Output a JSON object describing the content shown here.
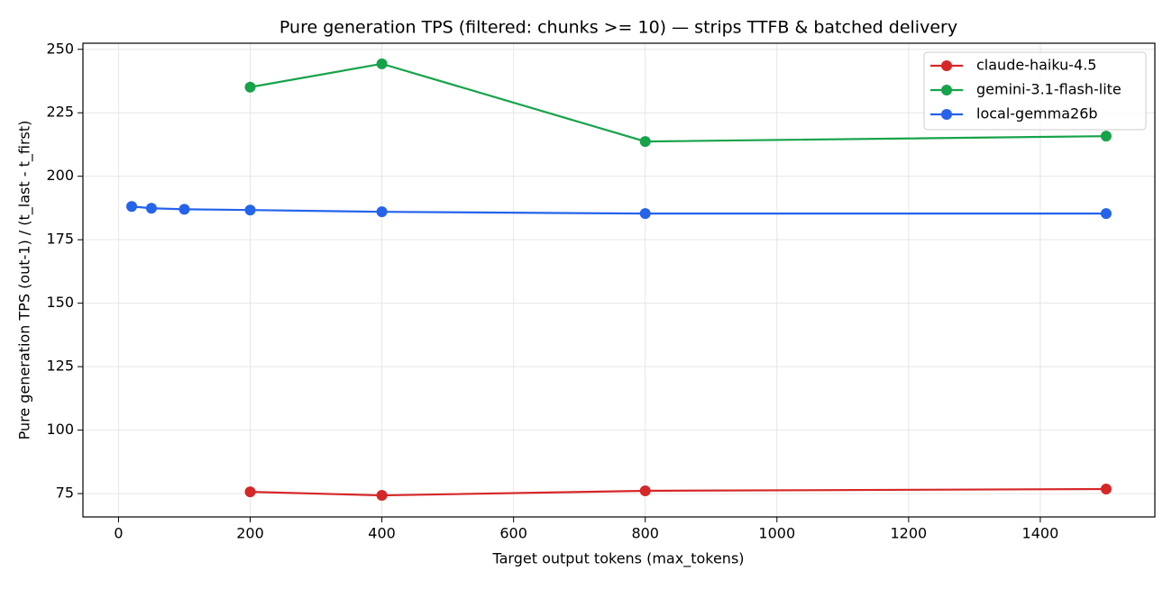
{
  "chart_data": {
    "type": "line",
    "title": "Pure generation TPS (filtered: chunks >= 10)  — strips TTFB & batched delivery",
    "x_label": "Target output tokens (max_tokens)",
    "y_label": "Pure generation TPS  (out-1) / (t_last - t_first)",
    "xlim": [
      -54,
      1574
    ],
    "xticks": [
      0,
      200,
      400,
      600,
      800,
      1000,
      1200,
      1400
    ],
    "ylim": [
      65.8,
      252.4
    ],
    "yticks": [
      75,
      100,
      125,
      150,
      175,
      200,
      225,
      250
    ],
    "grid": true,
    "legend": "upper right",
    "series": [
      {
        "name": "claude-haiku-4.5",
        "color": "#d62728",
        "x": [
          200,
          400,
          800,
          1500
        ],
        "values": [
          75.7,
          74.3,
          76.1,
          76.8
        ]
      },
      {
        "name": "gemini-3.1-flash-lite",
        "color": "#16a34a",
        "x": [
          200,
          400,
          800,
          1500
        ],
        "values": [
          235.1,
          244.3,
          213.7,
          215.8
        ]
      },
      {
        "name": "local-gemma26b",
        "color": "#2563eb",
        "x": [
          20,
          50,
          100,
          200,
          400,
          800,
          1500
        ],
        "values": [
          188.1,
          187.4,
          187.0,
          186.7,
          186.0,
          185.3,
          185.3
        ]
      }
    ]
  }
}
